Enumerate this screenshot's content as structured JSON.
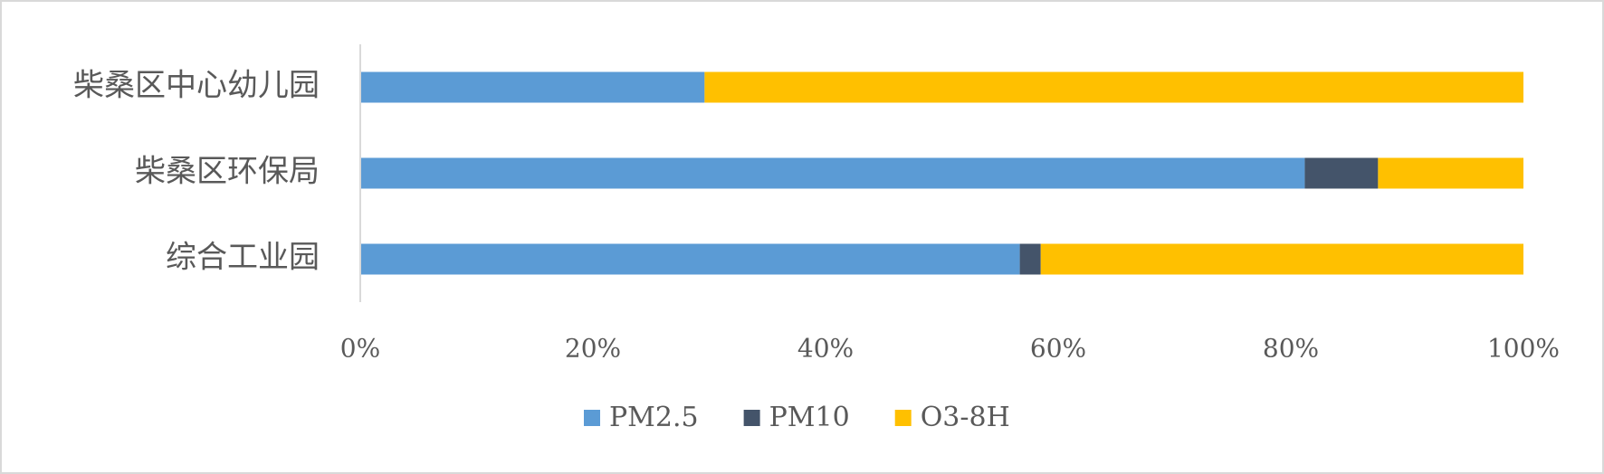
{
  "chart_data": {
    "type": "stacked_bar_horizontal",
    "categories": [
      "柴桑区中心幼儿园",
      "柴桑区环保局",
      "综合工业园"
    ],
    "series": [
      {
        "name": "PM2.5",
        "color": "#5b9bd5",
        "values": [
          29.6,
          81.2,
          56.7
        ]
      },
      {
        "name": "PM10",
        "color": "#44546a",
        "values": [
          0,
          6.3,
          1.8
        ]
      },
      {
        "name": "O3-8H",
        "color": "#ffc000",
        "values": [
          70.4,
          12.5,
          41.5
        ]
      }
    ],
    "xlim": [
      0,
      100
    ],
    "xticks": [
      {
        "value": 0,
        "label": "0%"
      },
      {
        "value": 20,
        "label": "20%"
      },
      {
        "value": 40,
        "label": "40%"
      },
      {
        "value": 60,
        "label": "60%"
      },
      {
        "value": 80,
        "label": "80%"
      },
      {
        "value": 100,
        "label": "100%"
      }
    ],
    "legend": "bottom"
  }
}
